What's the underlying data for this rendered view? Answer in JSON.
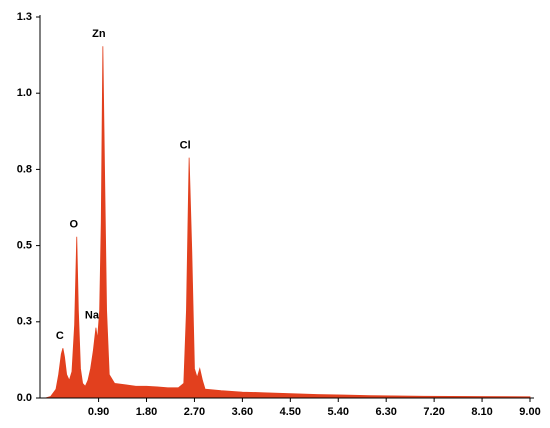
{
  "chart_data": {
    "type": "area",
    "color": "#e2401e",
    "x": [
      -0.1,
      0.0,
      0.1,
      0.15,
      0.2,
      0.23,
      0.26,
      0.3,
      0.35,
      0.4,
      0.45,
      0.49,
      0.52,
      0.56,
      0.6,
      0.65,
      0.7,
      0.75,
      0.8,
      0.85,
      0.88,
      0.92,
      0.95,
      0.98,
      1.01,
      1.05,
      1.1,
      1.2,
      1.4,
      1.6,
      1.8,
      2.0,
      2.2,
      2.4,
      2.5,
      2.55,
      2.6,
      2.65,
      2.7,
      2.75,
      2.8,
      2.85,
      2.9,
      3.2,
      3.6,
      4.0,
      4.5,
      5.0,
      5.5,
      6.0,
      7.0,
      8.0,
      9.0
    ],
    "values": [
      0,
      0.005,
      0.03,
      0.08,
      0.15,
      0.17,
      0.14,
      0.08,
      0.06,
      0.09,
      0.25,
      0.55,
      0.3,
      0.1,
      0.05,
      0.04,
      0.06,
      0.1,
      0.16,
      0.24,
      0.2,
      0.3,
      0.6,
      1.2,
      0.8,
      0.3,
      0.08,
      0.05,
      0.045,
      0.04,
      0.04,
      0.038,
      0.035,
      0.035,
      0.05,
      0.3,
      0.82,
      0.5,
      0.1,
      0.07,
      0.1,
      0.06,
      0.03,
      0.025,
      0.02,
      0.018,
      0.015,
      0.012,
      0.01,
      0.008,
      0.006,
      0.005,
      0.004
    ],
    "xlim": [
      -0.2,
      9.0
    ],
    "xticks": [
      {
        "value": 0.9,
        "label": "0.90"
      },
      {
        "value": 1.8,
        "label": "1.80"
      },
      {
        "value": 2.7,
        "label": "2.70"
      },
      {
        "value": 3.6,
        "label": "3.60"
      },
      {
        "value": 4.5,
        "label": "4.50"
      },
      {
        "value": 5.4,
        "label": "5.40"
      },
      {
        "value": 6.3,
        "label": "6.30"
      },
      {
        "value": 7.2,
        "label": "7.20"
      },
      {
        "value": 8.1,
        "label": "8.10"
      },
      {
        "value": 9.0,
        "label": "9.00"
      }
    ],
    "ylim": [
      0,
      1.3
    ],
    "yticks": [
      {
        "value": 0,
        "label": "0.0"
      },
      {
        "value": 0.26,
        "label": "0.3"
      },
      {
        "value": 0.52,
        "label": "0.5"
      },
      {
        "value": 0.78,
        "label": "0.8"
      },
      {
        "value": 1.04,
        "label": "1.0"
      },
      {
        "value": 1.3,
        "label": "1.3"
      }
    ],
    "annotations": [
      {
        "text": "C",
        "x": 0.23,
        "y": 0.17
      },
      {
        "text": "O",
        "x": 0.49,
        "y": 0.55
      },
      {
        "text": "Na",
        "x": 0.85,
        "y": 0.24
      },
      {
        "text": "Zn",
        "x": 0.98,
        "y": 1.2
      },
      {
        "text": "Cl",
        "x": 2.6,
        "y": 0.82
      }
    ]
  }
}
